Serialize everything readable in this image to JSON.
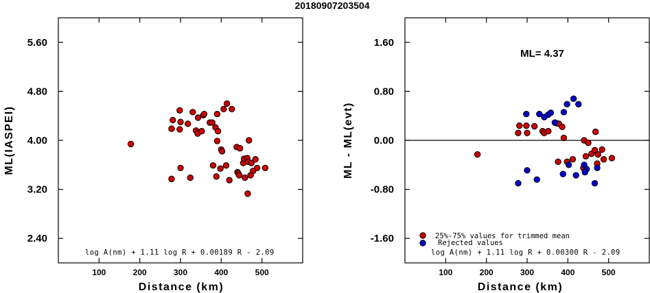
{
  "chart_data": [
    {
      "type": "scatter",
      "title": "20180907203504",
      "xlabel": "Distance (km)",
      "ylabel": "ML(IASPEI)",
      "xlim": [
        0,
        600
      ],
      "ylim": [
        2.0,
        6.0
      ],
      "xticks": [
        "100",
        "200",
        "300",
        "400",
        "500"
      ],
      "yticks": [
        "5.60",
        "4.80",
        "4.00",
        "3.20",
        "2.40"
      ],
      "annotation": "log A(nm) + 1.11 log R + 0.00189 R - 2.09",
      "series": [
        {
          "color": "#cc0000",
          "points": [
            [
              178,
              3.94
            ],
            [
              278,
              4.19
            ],
            [
              281,
              4.33
            ],
            [
              298,
              4.49
            ],
            [
              300,
              4.3
            ],
            [
              298,
              4.18
            ],
            [
              318,
              4.27
            ],
            [
              330,
              4.46
            ],
            [
              338,
              4.16
            ],
            [
              342,
              4.11
            ],
            [
              343,
              4.37
            ],
            [
              352,
              4.15
            ],
            [
              356,
              4.41
            ],
            [
              358,
              4.43
            ],
            [
              372,
              4.29
            ],
            [
              378,
              4.29
            ],
            [
              386,
              4.21
            ],
            [
              390,
              4.43
            ],
            [
              390,
              3.99
            ],
            [
              392,
              4.15
            ],
            [
              406,
              4.51
            ],
            [
              414,
              4.6
            ],
            [
              426,
              4.51
            ],
            [
              400,
              3.85
            ],
            [
              402,
              3.82
            ],
            [
              438,
              3.89
            ],
            [
              446,
              3.87
            ],
            [
              454,
              3.63
            ],
            [
              456,
              3.7
            ],
            [
              464,
              3.71
            ],
            [
              468,
              4.0
            ],
            [
              466,
              3.65
            ],
            [
              474,
              3.63
            ],
            [
              484,
              3.69
            ],
            [
              488,
              3.55
            ],
            [
              508,
              3.55
            ],
            [
              412,
              3.59
            ],
            [
              380,
              3.59
            ],
            [
              398,
              3.54
            ],
            [
              388,
              3.41
            ],
            [
              420,
              3.35
            ],
            [
              440,
              3.48
            ],
            [
              442,
              3.46
            ],
            [
              444,
              3.43
            ],
            [
              458,
              3.39
            ],
            [
              472,
              3.43
            ],
            [
              478,
              3.5
            ],
            [
              465,
              3.13
            ],
            [
              278,
              3.37
            ],
            [
              300,
              3.55
            ],
            [
              324,
              3.39
            ]
          ]
        }
      ]
    },
    {
      "type": "scatter",
      "title": "",
      "xlabel": "Distance (km)",
      "ylabel": "ML - ML(evt)",
      "xlim": [
        0,
        600
      ],
      "ylim": [
        -2.0,
        2.0
      ],
      "xticks": [
        "100",
        "200",
        "300",
        "400",
        "500"
      ],
      "yticks": [
        "1.60",
        "0.80",
        "0.00",
        "-0.80",
        "-1.60"
      ],
      "zero_line": 0.0,
      "ml_label": "ML= 4.37",
      "annotation": "log A(nm) + 1.11 log R + 0.00300 R - 2.09",
      "legend": {
        "position": "bottom-left",
        "entries": [
          {
            "label": "25%-75% values for trimmed mean",
            "color": "#cc0000"
          },
          {
            "label": "Rejected values",
            "color": "#0000cc"
          }
        ]
      },
      "series": [
        {
          "color": "#cc0000",
          "points": [
            [
              178,
              -0.23
            ],
            [
              278,
              0.12
            ],
            [
              281,
              0.24
            ],
            [
              298,
              0.24
            ],
            [
              300,
              0.12
            ],
            [
              318,
              0.23
            ],
            [
              338,
              0.15
            ],
            [
              342,
              0.12
            ],
            [
              352,
              0.15
            ],
            [
              372,
              0.28
            ],
            [
              378,
              0.27
            ],
            [
              386,
              0.22
            ],
            [
              390,
              0.04
            ],
            [
              376,
              -0.35
            ],
            [
              398,
              -0.35
            ],
            [
              440,
              0.0
            ],
            [
              450,
              -0.04
            ],
            [
              444,
              -0.26
            ],
            [
              458,
              -0.22
            ],
            [
              466,
              -0.16
            ],
            [
              468,
              0.14
            ],
            [
              474,
              -0.23
            ],
            [
              484,
              -0.15
            ],
            [
              488,
              -0.31
            ],
            [
              508,
              -0.29
            ],
            [
              412,
              -0.31
            ],
            [
              472,
              -0.38
            ],
            [
              438,
              -0.45
            ]
          ]
        },
        {
          "color": "#0000cc",
          "points": [
            [
              298,
              0.43
            ],
            [
              330,
              0.43
            ],
            [
              342,
              0.38
            ],
            [
              352,
              0.42
            ],
            [
              358,
              0.45
            ],
            [
              368,
              0.29
            ],
            [
              390,
              0.46
            ],
            [
              398,
              0.59
            ],
            [
              414,
              0.68
            ],
            [
              426,
              0.59
            ],
            [
              278,
              -0.7
            ],
            [
              300,
              -0.49
            ],
            [
              324,
              -0.64
            ],
            [
              388,
              -0.55
            ],
            [
              402,
              -0.4
            ],
            [
              420,
              -0.57
            ],
            [
              440,
              -0.4
            ],
            [
              446,
              -0.47
            ],
            [
              472,
              -0.45
            ],
            [
              466,
              -0.7
            ],
            [
              442,
              -0.52
            ]
          ]
        }
      ]
    }
  ]
}
